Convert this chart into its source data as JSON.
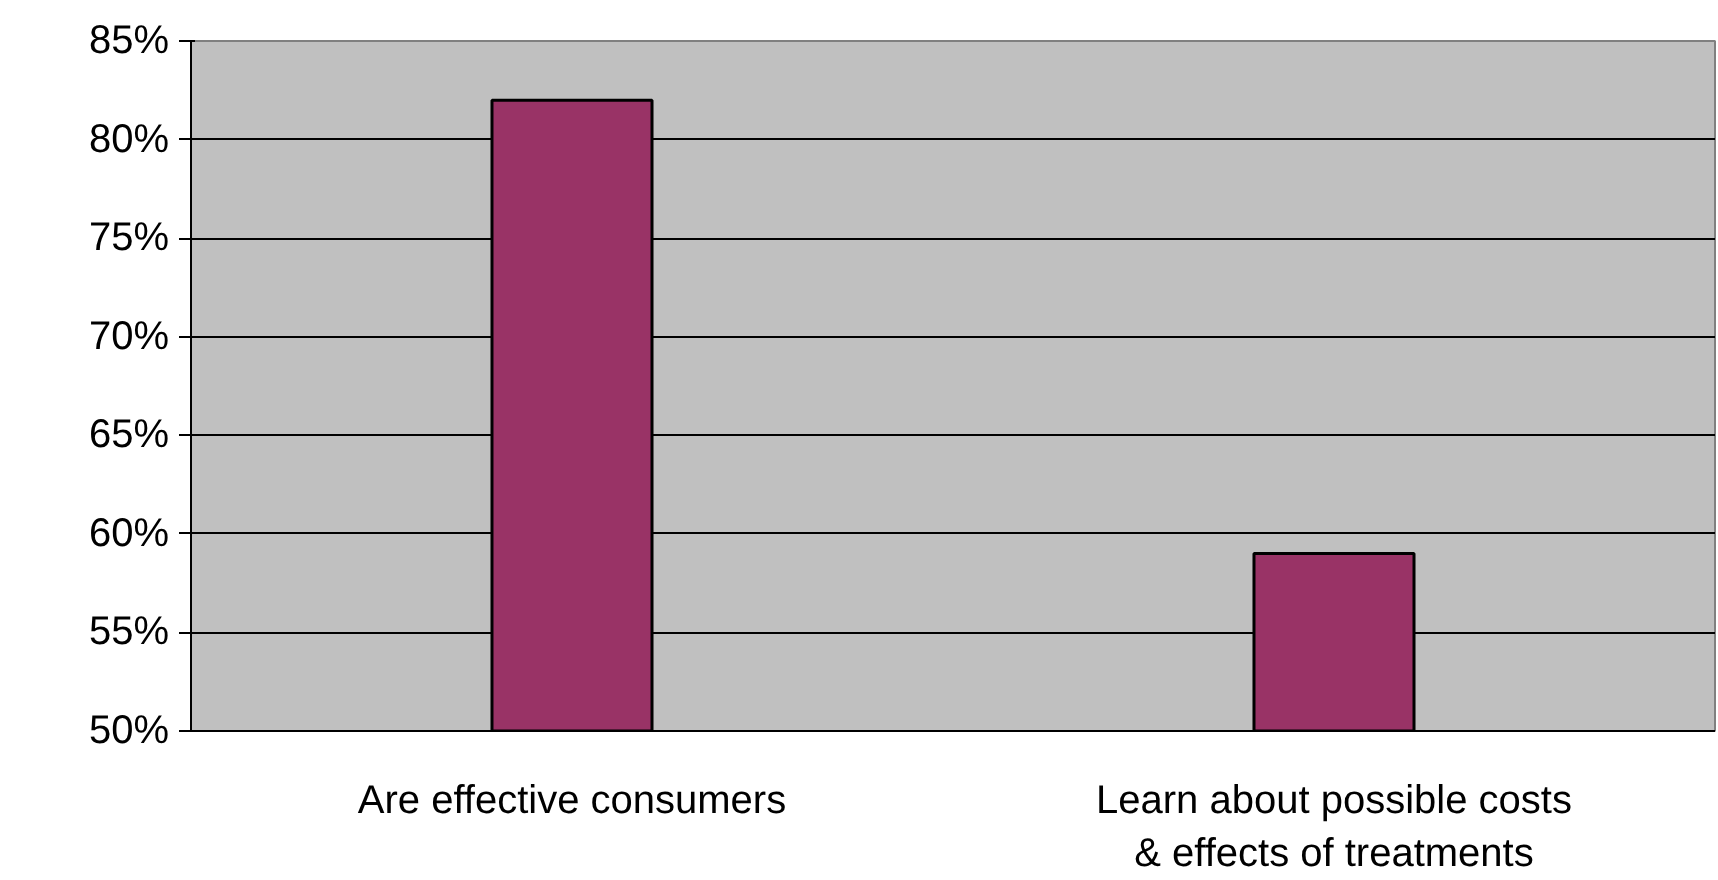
{
  "chart_data": {
    "type": "bar",
    "categories": [
      "Are effective consumers",
      "Learn about possible costs & effects of treatments"
    ],
    "values": [
      82,
      59
    ],
    "color": "#993366",
    "ylim": [
      50,
      85
    ],
    "yticks": [
      {
        "value": 50,
        "label": "50%"
      },
      {
        "value": 55,
        "label": "55%"
      },
      {
        "value": 60,
        "label": "60%"
      },
      {
        "value": 65,
        "label": "65%"
      },
      {
        "value": 70,
        "label": "70%"
      },
      {
        "value": 75,
        "label": "75%"
      },
      {
        "value": 80,
        "label": "80%"
      },
      {
        "value": 85,
        "label": "85%"
      }
    ],
    "grid": "y"
  }
}
